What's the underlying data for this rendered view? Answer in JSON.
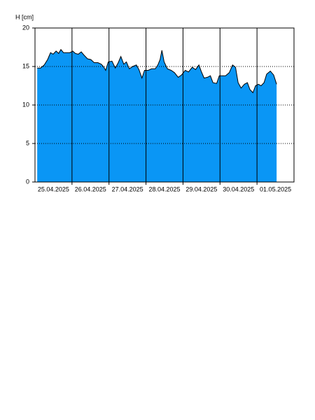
{
  "chart_data": {
    "type": "area",
    "y_label": "H [cm]",
    "x": [
      0.06,
      0.15,
      0.25,
      0.34,
      0.42,
      0.49,
      0.57,
      0.64,
      0.7,
      0.77,
      0.87,
      0.94,
      1.02,
      1.09,
      1.17,
      1.25,
      1.32,
      1.42,
      1.51,
      1.6,
      1.7,
      1.79,
      1.85,
      1.91,
      1.98,
      2.08,
      2.17,
      2.25,
      2.32,
      2.4,
      2.47,
      2.55,
      2.64,
      2.74,
      2.81,
      2.89,
      2.96,
      3.06,
      3.15,
      3.25,
      3.32,
      3.38,
      3.43,
      3.49,
      3.58,
      3.68,
      3.77,
      3.87,
      3.96,
      4.06,
      4.15,
      4.25,
      4.34,
      4.43,
      4.49,
      4.57,
      4.66,
      4.74,
      4.81,
      4.91,
      4.98,
      5.06,
      5.15,
      5.25,
      5.34,
      5.42,
      5.49,
      5.57,
      5.66,
      5.74,
      5.81,
      5.89,
      5.96,
      6.04,
      6.11,
      6.19,
      6.26,
      6.36,
      6.45,
      6.53
    ],
    "values": [
      14.8,
      14.8,
      15.2,
      15.9,
      16.8,
      16.6,
      17.0,
      16.7,
      17.2,
      16.8,
      16.8,
      16.8,
      17.0,
      16.7,
      16.6,
      16.9,
      16.5,
      16.0,
      15.9,
      15.5,
      15.5,
      15.3,
      15.0,
      14.5,
      15.6,
      15.7,
      14.8,
      15.5,
      16.3,
      15.3,
      15.6,
      14.7,
      15.0,
      15.2,
      14.6,
      13.5,
      14.5,
      14.5,
      14.7,
      14.7,
      15.2,
      15.9,
      17.1,
      15.6,
      14.7,
      14.5,
      14.2,
      13.6,
      13.9,
      14.5,
      14.3,
      14.9,
      14.6,
      15.2,
      14.4,
      13.5,
      13.6,
      13.8,
      12.9,
      12.8,
      13.8,
      13.8,
      13.8,
      14.2,
      15.2,
      14.9,
      12.9,
      12.2,
      12.7,
      12.9,
      12.0,
      11.6,
      12.5,
      12.7,
      12.5,
      12.9,
      14.0,
      14.4,
      13.9,
      12.7
    ],
    "color": "#0a96f5",
    "xlim": [
      0,
      7
    ],
    "xticks": [
      {
        "value": 0.5,
        "label": "25.04.2025"
      },
      {
        "value": 1.5,
        "label": "26.04.2025"
      },
      {
        "value": 2.5,
        "label": "27.04.2025"
      },
      {
        "value": 3.5,
        "label": "28.04.2025"
      },
      {
        "value": 4.5,
        "label": "29.04.2025"
      },
      {
        "value": 5.5,
        "label": "30.04.2025"
      },
      {
        "value": 6.5,
        "label": "01.05.2025"
      }
    ],
    "xgrid": [
      1,
      2,
      3,
      4,
      5,
      6
    ],
    "ylim": [
      0,
      20
    ],
    "yticks": [
      0,
      5,
      10,
      15,
      20
    ],
    "grid": true
  }
}
